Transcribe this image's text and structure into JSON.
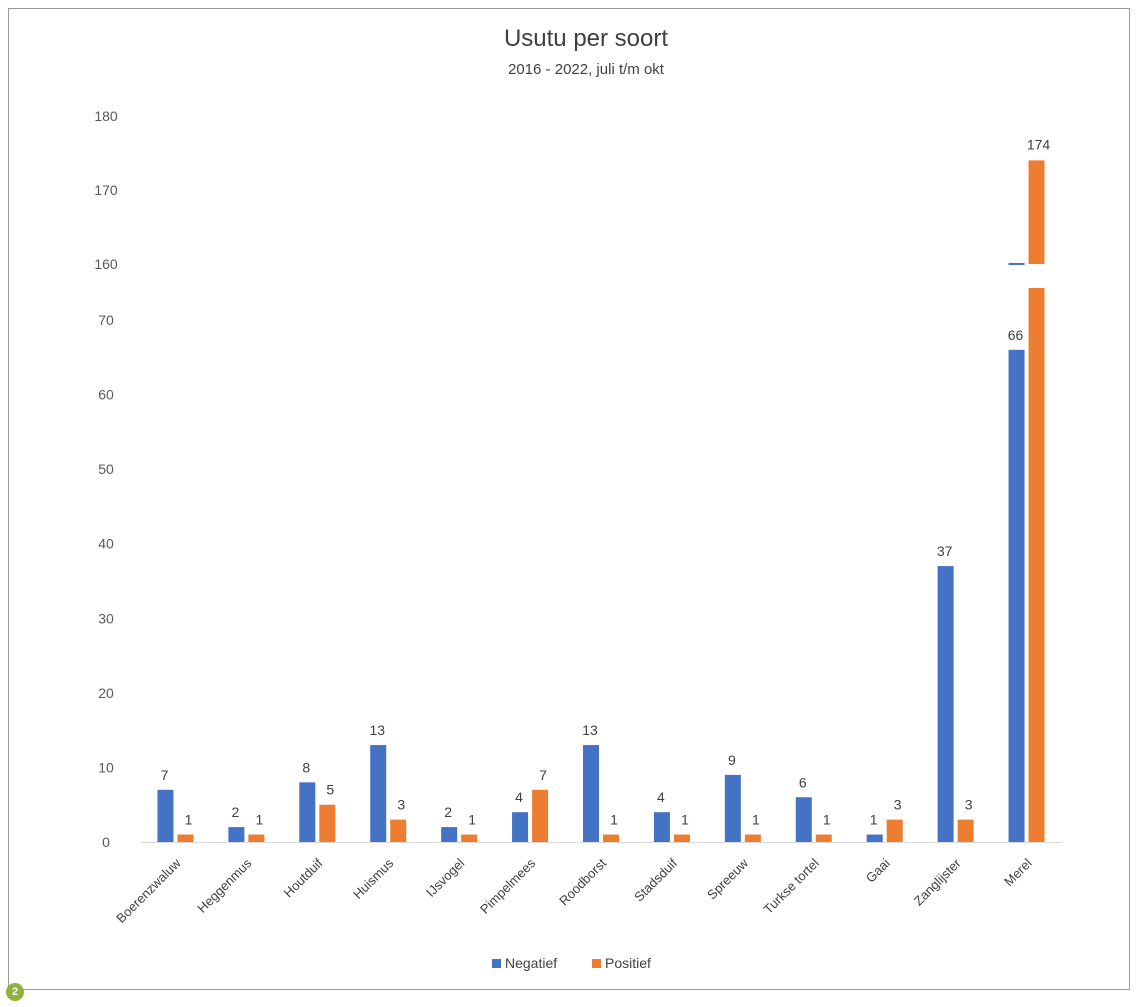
{
  "figure_number": "2",
  "colors": {
    "negatief": "#4472C4",
    "positief": "#ED7D31",
    "axis": "#d9d9d9",
    "badge": "#8DB33A"
  },
  "chart_data": {
    "type": "bar",
    "title": "Usutu per soort",
    "subtitle": "2016 - 2022, juli t/m okt",
    "xlabel": "",
    "ylabel": "",
    "categories": [
      "Boerenzwaluw",
      "Heggenmus",
      "Houtduif",
      "Huismus",
      "IJsvogel",
      "Pimpelmees",
      "Roodborst",
      "Stadsduif",
      "Spreeuw",
      "Turkse tortel",
      "Gaai",
      "Zanglijster",
      "Merel"
    ],
    "series": [
      {
        "name": "Negatief",
        "values": [
          7,
          2,
          8,
          13,
          2,
          4,
          13,
          4,
          9,
          6,
          1,
          37,
          66
        ]
      },
      {
        "name": "Positief",
        "values": [
          1,
          1,
          5,
          3,
          1,
          7,
          1,
          1,
          1,
          1,
          3,
          3,
          174
        ]
      }
    ],
    "axis_break": {
      "lower_range": [
        0,
        70
      ],
      "upper_range": [
        160,
        180
      ]
    },
    "yticks_lower": [
      0,
      10,
      20,
      30,
      40,
      50,
      60,
      70
    ],
    "yticks_upper": [
      160,
      170,
      180
    ],
    "legend_position": "bottom",
    "grid": false
  }
}
